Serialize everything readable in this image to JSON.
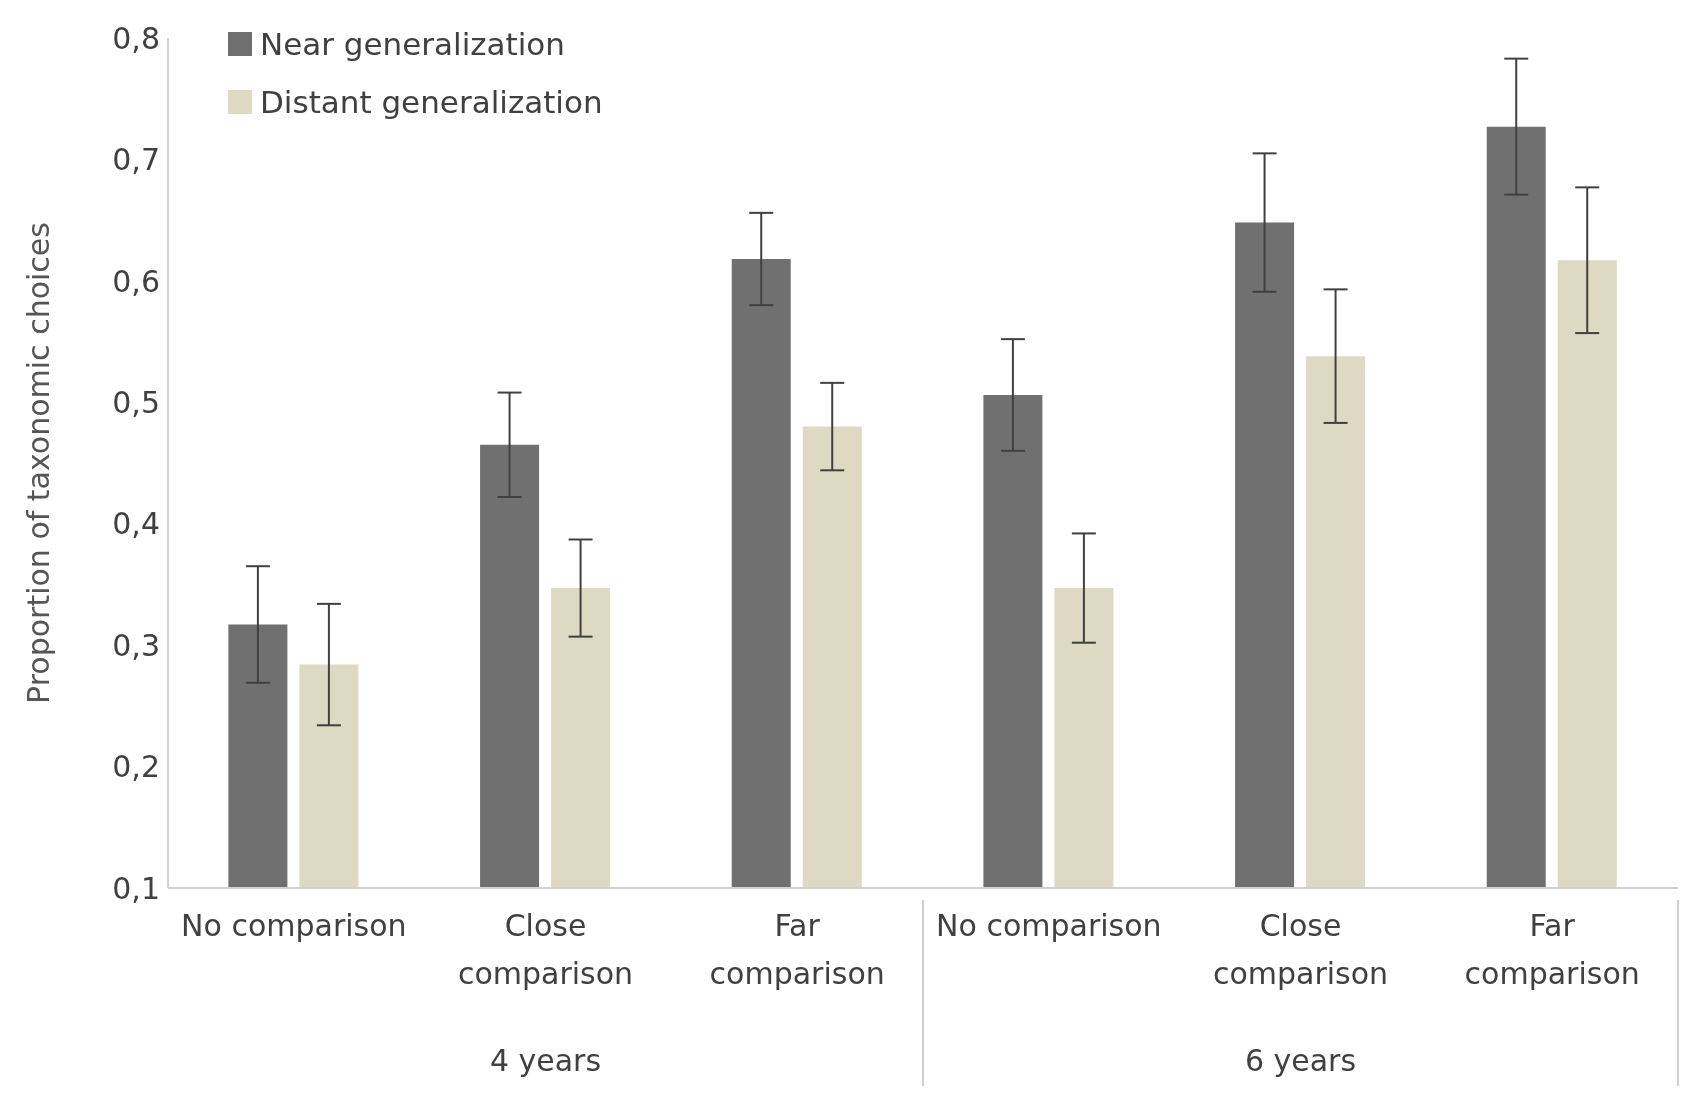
{
  "chart_data": {
    "type": "bar",
    "ylabel": "Proportion of taxonomic choices",
    "categories": [
      "No comparison",
      "Close comparison",
      "Far comparison",
      "No comparison",
      "Close comparison",
      "Far comparison"
    ],
    "series": [
      {
        "name": "Near generalization",
        "color": "#707070",
        "values": [
          0.317,
          0.465,
          0.618,
          0.506,
          0.648,
          0.727
        ],
        "errors": [
          0.048,
          0.043,
          0.038,
          0.046,
          0.057,
          0.056
        ]
      },
      {
        "name": "Distant generalization",
        "color": "#ddd9c3",
        "values": [
          0.284,
          0.347,
          0.48,
          0.347,
          0.538,
          0.617
        ],
        "errors": [
          0.05,
          0.04,
          0.036,
          0.045,
          0.055,
          0.06
        ]
      }
    ],
    "annotations": [
      "4 years",
      "6 years"
    ],
    "ylim": [
      0.1,
      0.8
    ],
    "yticks": [
      {
        "value": 0.1,
        "label": "0,1"
      },
      {
        "value": 0.2,
        "label": "0,2"
      },
      {
        "value": 0.3,
        "label": "0,3"
      },
      {
        "value": 0.4,
        "label": "0,4"
      },
      {
        "value": 0.5,
        "label": "0,5"
      },
      {
        "value": 0.6,
        "label": "0,6"
      },
      {
        "value": 0.7,
        "label": "0,7"
      },
      {
        "value": 0.8,
        "label": "0,8"
      }
    ],
    "grid": false,
    "legend": "top left"
  }
}
